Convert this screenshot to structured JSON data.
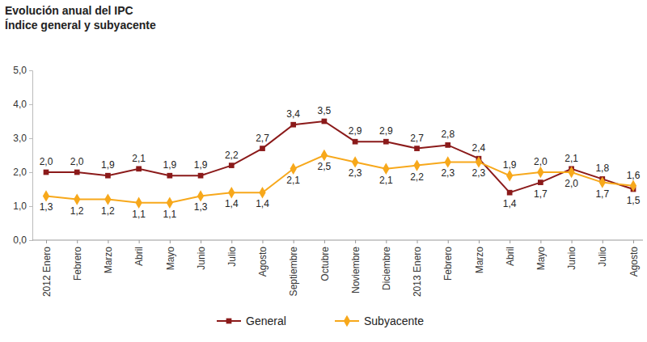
{
  "chart_data": {
    "type": "line",
    "title": "Evolución anual del IPC",
    "subtitle": "Índice general y subyacente",
    "categories": [
      "2012 Enero",
      "Febrero",
      "Marzo",
      "Abril",
      "Mayo",
      "Junio",
      "Julio",
      "Agosto",
      "Septiembre",
      "Octubre",
      "Noviembre",
      "Diciembre",
      "2013 Enero",
      "Febrero",
      "Marzo",
      "Abril",
      "Mayo",
      "Junio",
      "Julio",
      "Agosto"
    ],
    "series": [
      {
        "name": "General",
        "color": "#8b1a1a",
        "marker": "square",
        "line_style": "solid",
        "values": [
          2.0,
          2.0,
          1.9,
          2.1,
          1.9,
          1.9,
          2.2,
          2.7,
          3.4,
          3.5,
          2.9,
          2.9,
          2.7,
          2.8,
          2.4,
          1.4,
          1.7,
          2.1,
          1.8,
          1.5
        ],
        "value_labels": [
          "2,0",
          "2,0",
          "1,9",
          "2,1",
          "1,9",
          "1,9",
          "2,2",
          "2,7",
          "3,4",
          "3,5",
          "2,9",
          "2,9",
          "2,7",
          "2,8",
          "2,4",
          "1,4",
          "1,7",
          "2,1",
          "1,8",
          "1,5"
        ]
      },
      {
        "name": "Subyacente",
        "color": "#f7a81b",
        "marker": "diamond",
        "line_style": "solid",
        "values": [
          1.3,
          1.2,
          1.2,
          1.1,
          1.1,
          1.3,
          1.4,
          1.4,
          2.1,
          2.5,
          2.3,
          2.1,
          2.2,
          2.3,
          2.3,
          1.9,
          2.0,
          2.0,
          1.7,
          1.6
        ],
        "value_labels": [
          "1,3",
          "1,2",
          "1,2",
          "1,1",
          "1,1",
          "1,3",
          "1,4",
          "1,4",
          "2,1",
          "2,5",
          "2,3",
          "2,1",
          "2,2",
          "2,3",
          "2,3",
          "1,9",
          "2,0",
          "2,0",
          "1,7",
          "1,6"
        ]
      }
    ],
    "ylim": [
      0,
      5
    ],
    "yticks": [
      {
        "value": 0,
        "label": "0,0"
      },
      {
        "value": 1,
        "label": "1,0"
      },
      {
        "value": 2,
        "label": "2,0"
      },
      {
        "value": 3,
        "label": "3,0"
      },
      {
        "value": 4,
        "label": "4,0"
      },
      {
        "value": 5,
        "label": "5,0"
      }
    ],
    "grid": false,
    "data_labels": true,
    "legend": "bottom"
  }
}
